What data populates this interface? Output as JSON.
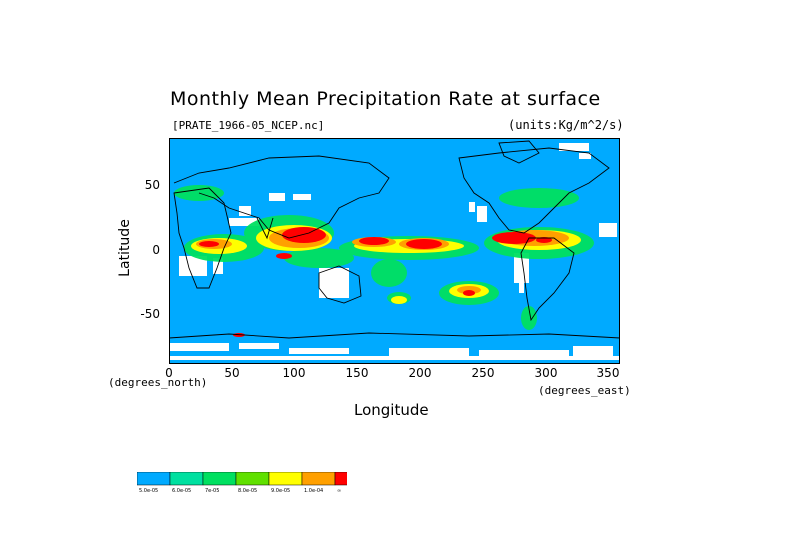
{
  "title": "Monthly Mean Precipitation Rate at surface",
  "file_label": "[PRATE_1966-05_NCEP.nc]",
  "units_label": "(units:Kg/m^2/s)",
  "y_axis": {
    "label": "Latitude",
    "ticks": [
      "50",
      "0",
      "-50"
    ]
  },
  "x_axis": {
    "label": "Longitude",
    "ticks": [
      "0",
      "50",
      "100",
      "150",
      "200",
      "250",
      "300",
      "350"
    ]
  },
  "y_unit_label": "(degrees_north)",
  "x_unit_label": "(degrees_east)",
  "map_extent": {
    "lon": [
      0,
      360
    ],
    "lat": [
      -90,
      90
    ]
  },
  "colors": {
    "ocean_base": "#00aaff",
    "missing": "#ffffff",
    "coast": "#000000"
  },
  "colorbar": {
    "bins": [
      {
        "color": "#00aaff",
        "label": "5.0e-05"
      },
      {
        "color": "#00e0a0",
        "label": "6.0e-05"
      },
      {
        "color": "#00e060",
        "label": "7e-05"
      },
      {
        "color": "#60e000",
        "label": "8.0e-05"
      },
      {
        "color": "#ffff00",
        "label": "9.0e-05"
      },
      {
        "color": "#ffa000",
        "label": "1.0e-04"
      },
      {
        "color": "#ff0000",
        "label": "∞"
      }
    ]
  }
}
